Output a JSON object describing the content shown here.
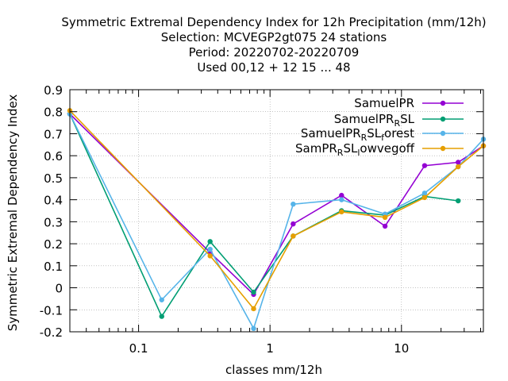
{
  "chart_data": {
    "type": "line",
    "title_lines": [
      "Symmetric Extremal Dependency Index  for 12h Precipitation (mm/12h)",
      "Selection: MCVEGP2gt075     24 stations",
      "Period: 20220702-20220709",
      "Used  00,12  + 12 15 ... 48"
    ],
    "xlabel": "classes mm/12h",
    "ylabel": "Symmetric Extremal Dependency Index",
    "xscale": "log",
    "xlim": [
      0.03,
      42
    ],
    "ylim": [
      -0.2,
      0.9
    ],
    "x_ticks": [
      {
        "value": 0.1,
        "label": "0.1"
      },
      {
        "value": 1,
        "label": "1"
      },
      {
        "value": 10,
        "label": "10"
      }
    ],
    "y_ticks": [
      {
        "value": -0.2,
        "label": "-0.2"
      },
      {
        "value": -0.1,
        "label": "-0.1"
      },
      {
        "value": 0,
        "label": "0"
      },
      {
        "value": 0.1,
        "label": "0.1"
      },
      {
        "value": 0.2,
        "label": "0.2"
      },
      {
        "value": 0.3,
        "label": "0.3"
      },
      {
        "value": 0.4,
        "label": "0.4"
      },
      {
        "value": 0.5,
        "label": "0.5"
      },
      {
        "value": 0.6,
        "label": "0.6"
      },
      {
        "value": 0.7,
        "label": "0.7"
      },
      {
        "value": 0.8,
        "label": "0.8"
      },
      {
        "value": 0.9,
        "label": "0.9"
      }
    ],
    "grid": true,
    "legend_position": "top-right",
    "series": [
      {
        "name": "SamuelPR",
        "color": "#9400d3",
        "x": [
          0.03,
          0.35,
          0.75,
          1.5,
          3.5,
          7.5,
          15,
          27,
          42
        ],
        "y": [
          0.79,
          0.16,
          -0.03,
          0.29,
          0.42,
          0.28,
          0.555,
          0.57,
          0.645
        ]
      },
      {
        "name": "SamuelPR_RSL",
        "color": "#009e73",
        "x": [
          0.03,
          0.15,
          0.35,
          0.75,
          1.5,
          3.5,
          7.5,
          15,
          27
        ],
        "y": [
          0.79,
          -0.13,
          0.21,
          -0.02,
          0.235,
          0.35,
          0.33,
          0.415,
          0.395
        ]
      },
      {
        "name": "SamuelPR_RSL_forest",
        "color": "#56b4e9",
        "x": [
          0.03,
          0.15,
          0.35,
          0.75,
          1.5,
          3.5,
          7.5,
          15,
          27,
          42
        ],
        "y": [
          0.79,
          -0.055,
          0.175,
          -0.185,
          0.38,
          0.4,
          0.335,
          0.43,
          0.55,
          0.675
        ]
      },
      {
        "name": "SamPR_RSL_lowvegoff",
        "color": "#e69f00",
        "x": [
          0.03,
          0.35,
          0.75,
          1.5,
          3.5,
          7.5,
          15,
          27,
          42
        ],
        "y": [
          0.805,
          0.145,
          -0.095,
          0.235,
          0.345,
          0.32,
          0.41,
          0.55,
          0.645
        ]
      }
    ]
  },
  "legend": [
    {
      "base": "SamuelPR",
      "sub": "",
      "rest": ""
    },
    {
      "base": "SamuelPR",
      "sub": "R",
      "rest": "SL"
    },
    {
      "base": "SamuelPR",
      "sub": "R",
      "rest": "SL",
      "sub2": "f",
      "rest2": "orest"
    },
    {
      "base": "SamPR",
      "sub": "R",
      "rest": "SL",
      "sub2": "l",
      "rest2": "owvegoff"
    }
  ]
}
